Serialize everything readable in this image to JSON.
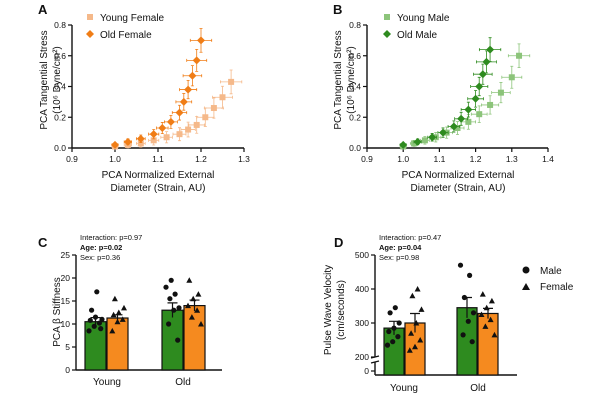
{
  "colors": {
    "young_female": "#f5b98a",
    "old_female": "#f07d16",
    "young_male": "#8cc47a",
    "old_male": "#2e8b1f",
    "bar_male": "#2e8b1f",
    "bar_female": "#f58a1f"
  },
  "chart_data": [
    {
      "panel": "A",
      "type": "scatter",
      "xlabel_line1": "PCA Normalized External",
      "xlabel_line2": "Diameter (Strain, AU)",
      "ylabel_line1": "PCA Tangential Stress",
      "ylabel_line2": "(10⁶ Dyne/cm²)",
      "xlim": [
        0.9,
        1.3
      ],
      "ylim": [
        0,
        0.8
      ],
      "xticks": [
        "0.9",
        "1.0",
        "1.1",
        "1.2",
        "1.3"
      ],
      "yticks": [
        "0.0",
        "0.2",
        "0.4",
        "0.6",
        "0.8"
      ],
      "series": [
        {
          "name": "Young Female",
          "marker": "square",
          "color_key": "young_female",
          "x": [
            1.0,
            1.03,
            1.06,
            1.09,
            1.12,
            1.15,
            1.17,
            1.19,
            1.21,
            1.23,
            1.25,
            1.27
          ],
          "y": [
            0.01,
            0.02,
            0.03,
            0.05,
            0.07,
            0.09,
            0.12,
            0.15,
            0.2,
            0.26,
            0.33,
            0.43
          ]
        },
        {
          "name": "Old Female",
          "marker": "diamond",
          "color_key": "old_female",
          "x": [
            1.0,
            1.03,
            1.06,
            1.09,
            1.11,
            1.13,
            1.15,
            1.16,
            1.17,
            1.18,
            1.19,
            1.2
          ],
          "y": [
            0.02,
            0.04,
            0.06,
            0.09,
            0.13,
            0.17,
            0.23,
            0.3,
            0.38,
            0.47,
            0.57,
            0.7
          ]
        }
      ]
    },
    {
      "panel": "B",
      "type": "scatter",
      "xlabel_line1": "PCA Normalized External",
      "xlabel_line2": "Diameter (Strain, AU)",
      "ylabel_line1": "PCA Tangential Stress",
      "ylabel_line2": "(10⁶ Dyne/cm²)",
      "xlim": [
        0.9,
        1.4
      ],
      "ylim": [
        0,
        0.8
      ],
      "xticks": [
        "0.9",
        "1.0",
        "1.1",
        "1.2",
        "1.3",
        "1.4"
      ],
      "yticks": [
        "0.0",
        "0.2",
        "0.4",
        "0.6",
        "0.8"
      ],
      "series": [
        {
          "name": "Young Male",
          "marker": "square",
          "color_key": "young_male",
          "x": [
            1.0,
            1.03,
            1.06,
            1.09,
            1.12,
            1.15,
            1.18,
            1.21,
            1.24,
            1.27,
            1.3,
            1.32
          ],
          "y": [
            0.01,
            0.03,
            0.05,
            0.07,
            0.1,
            0.13,
            0.17,
            0.22,
            0.28,
            0.36,
            0.46,
            0.6
          ]
        },
        {
          "name": "Old Male",
          "marker": "diamond",
          "color_key": "old_male",
          "x": [
            1.0,
            1.04,
            1.08,
            1.11,
            1.14,
            1.16,
            1.18,
            1.2,
            1.21,
            1.22,
            1.23,
            1.24
          ],
          "y": [
            0.02,
            0.04,
            0.07,
            0.1,
            0.14,
            0.19,
            0.25,
            0.32,
            0.4,
            0.48,
            0.56,
            0.64
          ]
        }
      ]
    },
    {
      "panel": "C",
      "type": "bar",
      "ylabel": "PCA β Stiffness",
      "categories": [
        "Young",
        "Old"
      ],
      "ylim": [
        0,
        25
      ],
      "yticks": [
        "0",
        "5",
        "10",
        "15",
        "20",
        "25"
      ],
      "stats": {
        "interaction": "Interaction: p=0.97",
        "age": "Age: p=0.02",
        "sex": "Sex: p=0.36"
      },
      "series": [
        {
          "name": "Male",
          "marker": "circle",
          "color_key": "bar_male",
          "values": [
            10.5,
            13.0
          ],
          "errors": [
            0.9,
            1.6
          ],
          "points": [
            [
              8.5,
              9.5,
              10.2,
              10.8,
              11.5,
              9.0,
              13.0,
              17.0,
              11.0
            ],
            [
              6.5,
              10.0,
              13.0,
              13.5,
              15.5,
              16.5,
              18.0,
              19.5
            ]
          ]
        },
        {
          "name": "Female",
          "marker": "triangle",
          "color_key": "bar_female",
          "values": [
            11.3,
            14.0
          ],
          "errors": [
            0.7,
            1.2
          ],
          "points": [
            [
              8.5,
              10.5,
              11.0,
              12.0,
              12.5,
              13.5,
              15.5
            ],
            [
              10.0,
              11.5,
              13.0,
              14.0,
              15.5,
              16.5,
              19.5
            ]
          ]
        }
      ]
    },
    {
      "panel": "D",
      "type": "bar",
      "ylabel_line1": "Pulse Wave Velocity",
      "ylabel_line2": "(cm/seconds)",
      "categories": [
        "Young",
        "Old"
      ],
      "ylim": [
        200,
        500
      ],
      "axis_break": true,
      "yticks": [
        "200",
        "300",
        "400",
        "500",
        "0"
      ],
      "stats": {
        "interaction": "Interaction: p=0.47",
        "age": "Age: p=0.04",
        "sex": "Sex: p=0.98"
      },
      "series": [
        {
          "name": "Male",
          "marker": "circle",
          "color_key": "bar_male",
          "values": [
            285,
            345
          ],
          "errors": [
            20,
            30
          ],
          "points": [
            [
              235,
              245,
              260,
              275,
              285,
              300,
              330,
              345
            ],
            [
              245,
              265,
              305,
              330,
              375,
              440,
              470
            ]
          ]
        },
        {
          "name": "Female",
          "marker": "triangle",
          "color_key": "bar_female",
          "values": [
            300,
            328
          ],
          "errors": [
            28,
            15
          ],
          "points": [
            [
              220,
              230,
              250,
              270,
              300,
              340,
              380,
              400
            ],
            [
              265,
              290,
              310,
              325,
              345,
              365,
              385
            ]
          ]
        }
      ]
    }
  ],
  "legend_panel_d": [
    "Male",
    "Female"
  ]
}
